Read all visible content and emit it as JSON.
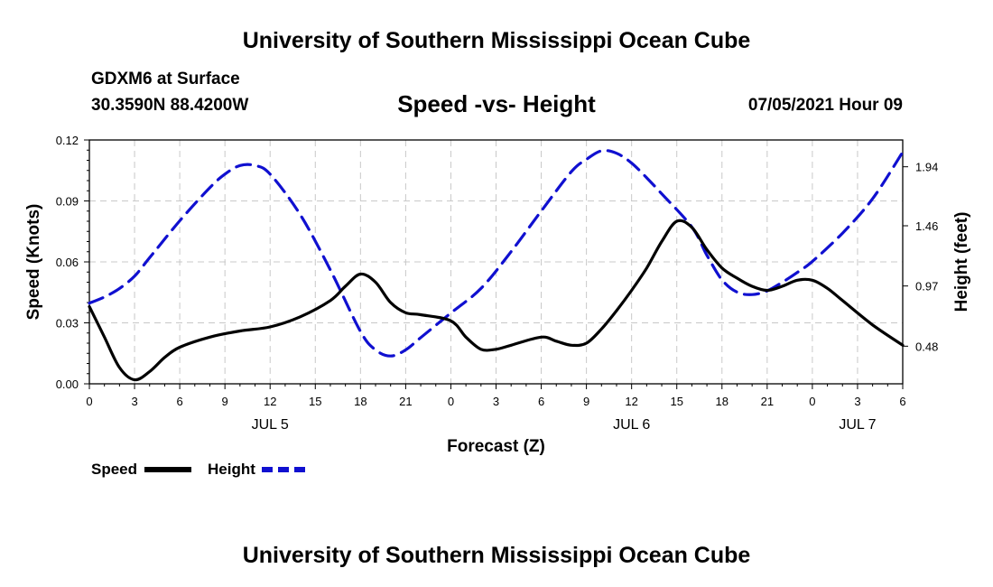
{
  "header": {
    "title_top": "University of Southern Mississippi Ocean Cube",
    "station": "GDXM6 at Surface",
    "coords": "30.3590N  88.4200W",
    "chart_title": "Speed -vs- Height",
    "datetime": "07/05/2021 Hour 09"
  },
  "footer": {
    "title_bottom": "University of Southern Mississippi Ocean Cube"
  },
  "colors": {
    "speed": "#000000",
    "height": "#1010d0",
    "grid": "#c8c8c8"
  },
  "chart_data": {
    "type": "line",
    "title": "Speed -vs- Height",
    "xlabel": "Forecast (Z)",
    "ylabel": "Speed (Knots)",
    "ylabel_right": "Height (feet)",
    "x_range": [
      0,
      54
    ],
    "ylim": [
      0,
      0.12
    ],
    "ylim_right": [
      0.174,
      2.158
    ],
    "x_ticks": [
      0,
      3,
      6,
      9,
      12,
      15,
      18,
      21,
      24,
      27,
      30,
      33,
      36,
      39,
      42,
      45,
      48,
      51,
      54
    ],
    "x_tick_labels": [
      "0",
      "3",
      "6",
      "9",
      "12",
      "15",
      "18",
      "21",
      "0",
      "3",
      "6",
      "9",
      "12",
      "15",
      "18",
      "21",
      "0",
      "3",
      "6"
    ],
    "day_labels": [
      {
        "x": 12,
        "label": "JUL 5"
      },
      {
        "x": 36,
        "label": "JUL 6"
      },
      {
        "x": 51,
        "label": "JUL 7"
      }
    ],
    "y_ticks": [
      0.0,
      0.03,
      0.06,
      0.09,
      0.12
    ],
    "y_tick_labels": [
      "0.00",
      "0.03",
      "0.06",
      "0.09",
      "0.12"
    ],
    "y_ticks_right": [
      0.48,
      0.97,
      1.46,
      1.94
    ],
    "y_tick_labels_right": [
      "0.48",
      "0.97",
      "1.46",
      "1.94"
    ],
    "grid": true,
    "legend": "bottom-left",
    "series": [
      {
        "name": "Speed",
        "axis": "left",
        "style": "solid",
        "x": [
          0,
          1,
          2,
          3,
          4,
          5,
          6,
          8,
          10,
          12,
          14,
          16,
          17,
          18,
          19,
          20,
          21,
          22,
          24,
          25,
          26,
          27,
          28,
          30,
          31,
          32,
          33,
          34,
          35,
          36,
          37,
          38,
          39,
          40,
          41,
          42,
          43,
          44,
          45,
          46,
          47,
          48,
          49,
          50,
          52,
          54
        ],
        "values": [
          0.038,
          0.023,
          0.008,
          0.002,
          0.006,
          0.013,
          0.018,
          0.023,
          0.026,
          0.028,
          0.033,
          0.041,
          0.048,
          0.054,
          0.05,
          0.04,
          0.035,
          0.034,
          0.031,
          0.023,
          0.017,
          0.017,
          0.019,
          0.023,
          0.021,
          0.019,
          0.02,
          0.027,
          0.036,
          0.046,
          0.057,
          0.07,
          0.08,
          0.077,
          0.066,
          0.057,
          0.052,
          0.048,
          0.046,
          0.048,
          0.051,
          0.051,
          0.047,
          0.041,
          0.029,
          0.019
        ]
      },
      {
        "name": "Height",
        "axis": "right",
        "style": "dashed",
        "x": [
          0,
          1,
          2,
          3,
          4,
          6,
          8,
          9,
          10,
          11,
          12,
          14,
          16,
          18,
          19,
          20,
          21,
          22,
          24,
          26,
          28,
          30,
          32,
          33,
          34,
          35,
          36,
          37,
          38,
          40,
          41,
          42,
          43,
          44,
          45,
          46,
          47,
          48,
          50,
          52,
          54
        ],
        "values": [
          0.83,
          0.88,
          0.95,
          1.05,
          1.2,
          1.5,
          1.77,
          1.88,
          1.95,
          1.95,
          1.88,
          1.55,
          1.1,
          0.6,
          0.45,
          0.4,
          0.45,
          0.55,
          0.75,
          0.95,
          1.25,
          1.58,
          1.9,
          2.0,
          2.07,
          2.05,
          1.97,
          1.85,
          1.72,
          1.45,
          1.22,
          1.02,
          0.92,
          0.9,
          0.93,
          1.0,
          1.08,
          1.17,
          1.4,
          1.68,
          2.06
        ]
      }
    ]
  },
  "legend": {
    "speed_label": "Speed",
    "height_label": "Height"
  }
}
